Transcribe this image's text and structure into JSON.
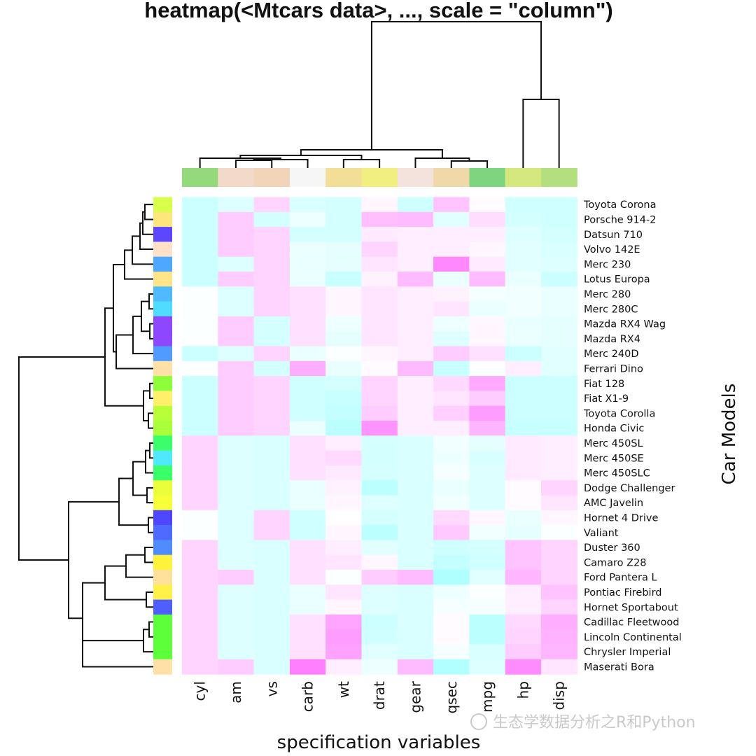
{
  "chart_data": {
    "type": "heatmap",
    "title": "heatmap(<Mtcars data>, ..., scale = \"column\")",
    "xlabel": "specification variables",
    "ylabel": "Car Models",
    "scale": "column",
    "columns": [
      "cyl",
      "am",
      "vs",
      "carb",
      "wt",
      "drat",
      "gear",
      "qsec",
      "mpg",
      "hp",
      "disp"
    ],
    "rows": [
      "Toyota Corona",
      "Porsche 914-2",
      "Datsun 710",
      "Volvo 142E",
      "Merc 230",
      "Lotus Europa",
      "Merc 280",
      "Merc 280C",
      "Mazda RX4 Wag",
      "Mazda RX4",
      "Merc 240D",
      "Ferrari Dino",
      "Fiat 128",
      "Fiat X1-9",
      "Toyota Corolla",
      "Honda Civic",
      "Merc 450SL",
      "Merc 450SE",
      "Merc 450SLC",
      "Dodge Challenger",
      "AMC Javelin",
      "Hornet 4 Drive",
      "Valiant",
      "Duster 360",
      "Camaro Z28",
      "Ford Pantera L",
      "Pontiac Firebird",
      "Hornet Sportabout",
      "Cadillac Fleetwood",
      "Lincoln Continental",
      "Chrysler Imperial",
      "Maserati Bora"
    ],
    "values": [
      [
        -1.2,
        -0.8,
        1.0,
        -0.9,
        -1.0,
        0.2,
        -1.1,
        1.4,
        0.1,
        -1.1,
        -1.1
      ],
      [
        -1.2,
        1.2,
        -1.0,
        -0.4,
        -1.0,
        1.5,
        1.6,
        -0.7,
        0.8,
        -1.0,
        -1.1
      ],
      [
        -1.2,
        1.2,
        1.0,
        -1.0,
        -1.0,
        0.5,
        0.4,
        0.4,
        0.4,
        -0.8,
        -1.0
      ],
      [
        -1.2,
        1.2,
        1.0,
        -0.5,
        -0.6,
        1.0,
        0.4,
        0.4,
        0.2,
        -0.7,
        -0.9
      ],
      [
        -1.2,
        -0.8,
        1.0,
        -0.5,
        -0.6,
        0.6,
        0.4,
        2.8,
        0.5,
        -0.7,
        -0.8
      ],
      [
        -1.2,
        1.2,
        1.0,
        -0.5,
        -1.3,
        0.3,
        1.6,
        -0.5,
        1.6,
        -0.5,
        -1.2
      ],
      [
        -0.1,
        -0.8,
        1.0,
        0.7,
        0.2,
        0.6,
        0.4,
        0.3,
        -0.2,
        -0.3,
        -0.5
      ],
      [
        -0.1,
        -0.8,
        1.0,
        0.7,
        0.2,
        0.6,
        0.4,
        0.6,
        -0.5,
        -0.3,
        -0.5
      ],
      [
        -0.1,
        1.2,
        -1.0,
        0.7,
        -0.4,
        0.6,
        0.4,
        -0.4,
        0.2,
        -0.5,
        -0.6
      ],
      [
        -0.1,
        1.2,
        -1.0,
        0.7,
        -0.6,
        0.6,
        0.4,
        -0.8,
        0.2,
        -0.5,
        -0.6
      ],
      [
        -1.2,
        -0.8,
        1.0,
        -0.5,
        -0.1,
        0.2,
        0.4,
        1.2,
        0.7,
        -1.2,
        -0.7
      ],
      [
        -0.1,
        1.2,
        -1.0,
        1.9,
        -0.5,
        0.1,
        1.6,
        -1.3,
        -0.1,
        0.4,
        -0.7
      ],
      [
        -1.2,
        1.2,
        1.0,
        -1.1,
        -1.0,
        1.0,
        0.4,
        0.9,
        2.0,
        -1.2,
        -1.2
      ],
      [
        -1.2,
        1.2,
        1.0,
        -1.1,
        -1.3,
        1.0,
        0.4,
        0.6,
        1.2,
        -1.2,
        -1.2
      ],
      [
        -1.2,
        1.2,
        1.0,
        -1.1,
        -1.4,
        1.2,
        0.4,
        1.1,
        2.3,
        -1.2,
        -1.2
      ],
      [
        -1.2,
        1.2,
        1.0,
        -0.5,
        -1.6,
        2.5,
        0.4,
        0.4,
        1.7,
        -1.3,
        -1.3
      ],
      [
        1.0,
        -0.8,
        -0.9,
        0.7,
        0.4,
        -1.0,
        -0.9,
        -0.3,
        -0.6,
        0.5,
        0.4
      ],
      [
        1.0,
        -0.8,
        -0.9,
        0.7,
        0.9,
        -1.0,
        -0.9,
        -0.4,
        -0.9,
        0.5,
        0.4
      ],
      [
        1.0,
        -0.8,
        -0.9,
        0.7,
        0.5,
        -1.0,
        -0.9,
        -0.2,
        -0.8,
        0.5,
        0.4
      ],
      [
        1.0,
        -0.8,
        -0.9,
        -0.5,
        0.3,
        -1.6,
        -0.9,
        -0.5,
        -0.8,
        0.1,
        1.0
      ],
      [
        1.0,
        -0.8,
        -0.9,
        -0.5,
        0.2,
        -0.8,
        -0.9,
        -0.3,
        -0.8,
        0.1,
        0.6
      ],
      [
        -0.1,
        -0.8,
        1.0,
        -1.1,
        0.0,
        -1.0,
        -0.9,
        0.9,
        0.2,
        -0.5,
        0.2
      ],
      [
        -0.1,
        -0.8,
        1.0,
        -1.1,
        0.2,
        -1.6,
        -0.9,
        1.3,
        -0.3,
        -0.6,
        -0.1
      ],
      [
        1.0,
        -0.8,
        -0.9,
        0.7,
        0.4,
        -0.7,
        -0.9,
        -1.1,
        -1.0,
        1.4,
        1.0
      ],
      [
        1.0,
        -0.8,
        -0.9,
        0.7,
        0.6,
        0.2,
        -0.9,
        -1.4,
        -1.1,
        1.4,
        1.0
      ],
      [
        1.0,
        1.2,
        -0.9,
        0.7,
        -0.1,
        1.2,
        1.6,
        -1.9,
        -0.7,
        1.7,
        1.0
      ],
      [
        1.0,
        -0.8,
        -0.9,
        -0.5,
        0.6,
        -0.8,
        -0.9,
        -0.4,
        -0.1,
        0.4,
        1.4
      ],
      [
        1.0,
        -0.8,
        -0.9,
        -0.5,
        0.2,
        -0.8,
        -0.9,
        -0.2,
        -0.2,
        0.4,
        1.0
      ],
      [
        1.0,
        -0.8,
        -0.9,
        0.7,
        2.1,
        -1.2,
        -0.9,
        0.1,
        -1.6,
        0.9,
        1.9
      ],
      [
        1.0,
        -0.8,
        -0.9,
        0.7,
        2.3,
        -1.1,
        -0.9,
        0.1,
        -1.6,
        1.0,
        1.8
      ],
      [
        1.0,
        -0.8,
        -0.9,
        0.7,
        2.2,
        -0.7,
        -0.9,
        -0.2,
        -0.9,
        1.2,
        1.7
      ],
      [
        1.0,
        1.2,
        -0.9,
        3.2,
        0.4,
        -0.4,
        1.6,
        -1.8,
        -0.8,
        2.7,
        0.6
      ]
    ],
    "row_side_colors": [
      "#d9ff4a",
      "#ffe67a",
      "#5c47ff",
      "#ffe1c7",
      "#4fa8ff",
      "#ffe48a",
      "#4fbaff",
      "#4fdcff",
      "#8c47ff",
      "#8c47ff",
      "#4f9bff",
      "#ffe1a8",
      "#8cff3a",
      "#ffef6a",
      "#b8ff3a",
      "#a8ff3a",
      "#3aff6a",
      "#4fe8ff",
      "#3aff6a",
      "#e8ff3a",
      "#f6ff3a",
      "#4f47ff",
      "#4f6bff",
      "#4f8cff",
      "#fff23a",
      "#ffe19b",
      "#fff04a",
      "#4f5fff",
      "#5cff3a",
      "#5cff3a",
      "#5cff3a",
      "#ffe1a8"
    ],
    "col_side_colors": [
      "#95d97d",
      "#f2d9c8",
      "#f2d5b8",
      "#f6f6f6",
      "#f2de96",
      "#f0ef7f",
      "#f4e3dc",
      "#f1d8a9",
      "#7fd47f",
      "#d5e87e",
      "#b4df7f"
    ],
    "watermark": "生态学数据分析之R和Python"
  }
}
